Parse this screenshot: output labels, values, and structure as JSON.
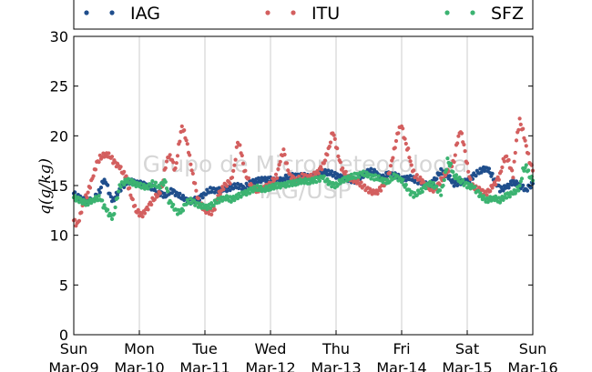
{
  "chart_data": {
    "type": "scatter",
    "ylabel": "q(g/kg)",
    "ylim": [
      0,
      30
    ],
    "yticks": [
      0,
      5,
      10,
      15,
      20,
      25,
      30
    ],
    "xlim": [
      "2015-03-09",
      "2015-03-16"
    ],
    "xtick_labels": [
      {
        "day": "Sun",
        "date": "Mar-09"
      },
      {
        "day": "Mon",
        "date": "Mar-10"
      },
      {
        "day": "Tue",
        "date": "Mar-11"
      },
      {
        "day": "Wed",
        "date": "Mar-12"
      },
      {
        "day": "Thu",
        "date": "Mar-13"
      },
      {
        "day": "Fri",
        "date": "Mar-14"
      },
      {
        "day": "Sat",
        "date": "Mar-15"
      },
      {
        "day": "Sun",
        "date": "Mar-16"
      }
    ],
    "grid": "vertical",
    "legend": "top",
    "watermark": [
      "Grupo de Micrometeorologia",
      "IAG/USP"
    ],
    "series": [
      {
        "name": "IAG",
        "color": "#1f4e8c",
        "points": [
          [
            0.0,
            14.2
          ],
          [
            0.1,
            13.7
          ],
          [
            0.2,
            13.4
          ],
          [
            0.3,
            13.6
          ],
          [
            0.4,
            14.5
          ],
          [
            0.45,
            15.5
          ],
          [
            0.5,
            15.2
          ],
          [
            0.55,
            14.0
          ],
          [
            0.6,
            13.5
          ],
          [
            0.7,
            14.6
          ],
          [
            0.8,
            15.3
          ],
          [
            0.9,
            15.4
          ],
          [
            1.0,
            15.2
          ],
          [
            1.1,
            15.0
          ],
          [
            1.2,
            14.8
          ],
          [
            1.3,
            14.3
          ],
          [
            1.4,
            14.0
          ],
          [
            1.5,
            14.5
          ],
          [
            1.6,
            14.0
          ],
          [
            1.7,
            13.6
          ],
          [
            1.8,
            13.4
          ],
          [
            1.9,
            13.7
          ],
          [
            2.0,
            14.2
          ],
          [
            2.1,
            14.6
          ],
          [
            2.2,
            14.5
          ],
          [
            2.3,
            14.6
          ],
          [
            2.4,
            14.8
          ],
          [
            2.5,
            15.0
          ],
          [
            2.6,
            14.8
          ],
          [
            2.7,
            15.3
          ],
          [
            2.8,
            15.5
          ],
          [
            2.9,
            15.6
          ],
          [
            3.0,
            15.6
          ],
          [
            3.1,
            15.4
          ],
          [
            3.2,
            15.7
          ],
          [
            3.3,
            16.0
          ],
          [
            3.4,
            15.9
          ],
          [
            3.5,
            16.0
          ],
          [
            3.6,
            15.8
          ],
          [
            3.7,
            16.1
          ],
          [
            3.8,
            16.4
          ],
          [
            3.9,
            16.3
          ],
          [
            4.0,
            16.0
          ],
          [
            4.1,
            15.8
          ],
          [
            4.2,
            15.6
          ],
          [
            4.3,
            15.5
          ],
          [
            4.4,
            16.0
          ],
          [
            4.5,
            16.5
          ],
          [
            4.6,
            16.3
          ],
          [
            4.7,
            15.7
          ],
          [
            4.8,
            16.2
          ],
          [
            4.9,
            16.0
          ],
          [
            5.0,
            15.7
          ],
          [
            5.1,
            15.8
          ],
          [
            5.2,
            15.6
          ],
          [
            5.3,
            15.3
          ],
          [
            5.4,
            15.0
          ],
          [
            5.5,
            15.5
          ],
          [
            5.6,
            16.5
          ],
          [
            5.7,
            16.0
          ],
          [
            5.8,
            15.2
          ],
          [
            5.9,
            15.3
          ],
          [
            6.0,
            15.4
          ],
          [
            6.1,
            16.0
          ],
          [
            6.2,
            16.5
          ],
          [
            6.3,
            16.8
          ],
          [
            6.4,
            15.8
          ],
          [
            6.5,
            14.6
          ],
          [
            6.6,
            14.8
          ],
          [
            6.7,
            15.4
          ],
          [
            6.8,
            15.0
          ],
          [
            6.9,
            14.6
          ],
          [
            7.0,
            15.2
          ]
        ]
      },
      {
        "name": "ITU",
        "color": "#d35f5f",
        "points": [
          [
            0.0,
            11.5
          ],
          [
            0.05,
            11.0
          ],
          [
            0.1,
            12.0
          ],
          [
            0.15,
            13.5
          ],
          [
            0.2,
            14.0
          ],
          [
            0.25,
            15.0
          ],
          [
            0.3,
            16.0
          ],
          [
            0.35,
            17.2
          ],
          [
            0.4,
            17.8
          ],
          [
            0.5,
            18.2
          ],
          [
            0.55,
            18.0
          ],
          [
            0.6,
            17.5
          ],
          [
            0.7,
            16.8
          ],
          [
            0.8,
            15.8
          ],
          [
            0.85,
            14.5
          ],
          [
            0.9,
            13.5
          ],
          [
            0.95,
            12.5
          ],
          [
            1.0,
            12.2
          ],
          [
            1.05,
            12.0
          ],
          [
            1.1,
            12.5
          ],
          [
            1.2,
            13.5
          ],
          [
            1.3,
            14.2
          ],
          [
            1.35,
            15.0
          ],
          [
            1.4,
            17.0
          ],
          [
            1.45,
            18.0
          ],
          [
            1.5,
            17.5
          ],
          [
            1.55,
            16.5
          ],
          [
            1.6,
            19.0
          ],
          [
            1.65,
            21.0
          ],
          [
            1.7,
            20.0
          ],
          [
            1.75,
            18.5
          ],
          [
            1.8,
            16.5
          ],
          [
            1.85,
            15.0
          ],
          [
            1.9,
            13.5
          ],
          [
            2.0,
            12.5
          ],
          [
            2.1,
            12.3
          ],
          [
            2.15,
            12.8
          ],
          [
            2.2,
            14.0
          ],
          [
            2.3,
            15.0
          ],
          [
            2.4,
            15.5
          ],
          [
            2.45,
            17.0
          ],
          [
            2.5,
            19.5
          ],
          [
            2.55,
            18.5
          ],
          [
            2.6,
            16.5
          ],
          [
            2.7,
            15.0
          ],
          [
            2.8,
            14.5
          ],
          [
            2.9,
            14.8
          ],
          [
            3.0,
            15.2
          ],
          [
            3.1,
            16.0
          ],
          [
            3.15,
            17.5
          ],
          [
            3.2,
            18.5
          ],
          [
            3.25,
            17.0
          ],
          [
            3.3,
            16.0
          ],
          [
            3.4,
            15.5
          ],
          [
            3.5,
            16.0
          ],
          [
            3.6,
            15.8
          ],
          [
            3.7,
            16.2
          ],
          [
            3.8,
            17.0
          ],
          [
            3.85,
            18.0
          ],
          [
            3.9,
            19.0
          ],
          [
            3.95,
            20.5
          ],
          [
            4.0,
            19.0
          ],
          [
            4.05,
            17.5
          ],
          [
            4.1,
            16.5
          ],
          [
            4.2,
            15.8
          ],
          [
            4.3,
            15.5
          ],
          [
            4.4,
            15.0
          ],
          [
            4.5,
            14.5
          ],
          [
            4.6,
            14.2
          ],
          [
            4.7,
            14.8
          ],
          [
            4.8,
            16.0
          ],
          [
            4.85,
            17.5
          ],
          [
            4.9,
            19.0
          ],
          [
            4.95,
            20.5
          ],
          [
            5.0,
            21.0
          ],
          [
            5.05,
            19.5
          ],
          [
            5.1,
            18.5
          ],
          [
            5.15,
            17.0
          ],
          [
            5.2,
            16.0
          ],
          [
            5.3,
            15.5
          ],
          [
            5.4,
            14.8
          ],
          [
            5.5,
            14.5
          ],
          [
            5.6,
            15.5
          ],
          [
            5.7,
            16.5
          ],
          [
            5.8,
            17.5
          ],
          [
            5.85,
            19.5
          ],
          [
            5.9,
            20.5
          ],
          [
            5.95,
            19.0
          ],
          [
            6.0,
            17.0
          ],
          [
            6.05,
            15.5
          ],
          [
            6.1,
            14.8
          ],
          [
            6.2,
            14.5
          ],
          [
            6.3,
            14.2
          ],
          [
            6.4,
            15.0
          ],
          [
            6.5,
            16.0
          ],
          [
            6.55,
            17.5
          ],
          [
            6.6,
            18.0
          ],
          [
            6.65,
            17.0
          ],
          [
            6.7,
            16.0
          ],
          [
            6.75,
            19.5
          ],
          [
            6.8,
            21.5
          ],
          [
            6.85,
            20.5
          ],
          [
            6.9,
            19.0
          ],
          [
            6.95,
            17.5
          ],
          [
            7.0,
            16.5
          ]
        ]
      },
      {
        "name": "SFZ",
        "color": "#3cb371",
        "points": [
          [
            0.0,
            13.8
          ],
          [
            0.1,
            13.5
          ],
          [
            0.2,
            13.2
          ],
          [
            0.3,
            13.6
          ],
          [
            0.4,
            13.8
          ],
          [
            0.45,
            13.0
          ],
          [
            0.5,
            12.5
          ],
          [
            0.55,
            12.0
          ],
          [
            0.6,
            11.8
          ],
          [
            0.7,
            15.0
          ],
          [
            0.8,
            15.5
          ],
          [
            0.9,
            15.3
          ],
          [
            1.0,
            15.0
          ],
          [
            1.1,
            14.8
          ],
          [
            1.2,
            15.2
          ],
          [
            1.3,
            14.9
          ],
          [
            1.4,
            15.5
          ],
          [
            1.45,
            13.5
          ],
          [
            1.5,
            13.0
          ],
          [
            1.55,
            12.5
          ],
          [
            1.6,
            12.3
          ],
          [
            1.65,
            12.5
          ],
          [
            1.7,
            13.2
          ],
          [
            1.8,
            13.5
          ],
          [
            1.9,
            13.0
          ],
          [
            2.0,
            12.8
          ],
          [
            2.1,
            13.0
          ],
          [
            2.2,
            13.5
          ],
          [
            2.3,
            13.8
          ],
          [
            2.4,
            13.6
          ],
          [
            2.5,
            13.9
          ],
          [
            2.6,
            14.2
          ],
          [
            2.7,
            14.5
          ],
          [
            2.8,
            14.8
          ],
          [
            2.9,
            14.6
          ],
          [
            3.0,
            14.8
          ],
          [
            3.1,
            15.0
          ],
          [
            3.2,
            15.0
          ],
          [
            3.3,
            15.2
          ],
          [
            3.4,
            15.3
          ],
          [
            3.5,
            15.5
          ],
          [
            3.6,
            15.4
          ],
          [
            3.7,
            15.6
          ],
          [
            3.8,
            15.8
          ],
          [
            3.9,
            15.2
          ],
          [
            4.0,
            15.0
          ],
          [
            4.1,
            15.6
          ],
          [
            4.2,
            15.8
          ],
          [
            4.3,
            16.0
          ],
          [
            4.4,
            16.2
          ],
          [
            4.5,
            16.0
          ],
          [
            4.6,
            15.8
          ],
          [
            4.7,
            15.6
          ],
          [
            4.8,
            15.4
          ],
          [
            4.9,
            16.0
          ],
          [
            5.0,
            15.5
          ],
          [
            5.1,
            14.5
          ],
          [
            5.2,
            14.0
          ],
          [
            5.3,
            14.5
          ],
          [
            5.4,
            15.2
          ],
          [
            5.5,
            15.0
          ],
          [
            5.6,
            14.2
          ],
          [
            5.65,
            15.5
          ],
          [
            5.7,
            17.5
          ],
          [
            5.75,
            17.0
          ],
          [
            5.8,
            16.0
          ],
          [
            5.9,
            15.5
          ],
          [
            6.0,
            15.0
          ],
          [
            6.1,
            14.8
          ],
          [
            6.2,
            14.0
          ],
          [
            6.3,
            13.5
          ],
          [
            6.4,
            13.8
          ],
          [
            6.5,
            13.5
          ],
          [
            6.6,
            14.0
          ],
          [
            6.7,
            14.2
          ],
          [
            6.8,
            14.8
          ],
          [
            6.85,
            16.5
          ],
          [
            6.9,
            17.0
          ],
          [
            6.95,
            16.0
          ],
          [
            7.0,
            15.5
          ]
        ]
      }
    ]
  }
}
